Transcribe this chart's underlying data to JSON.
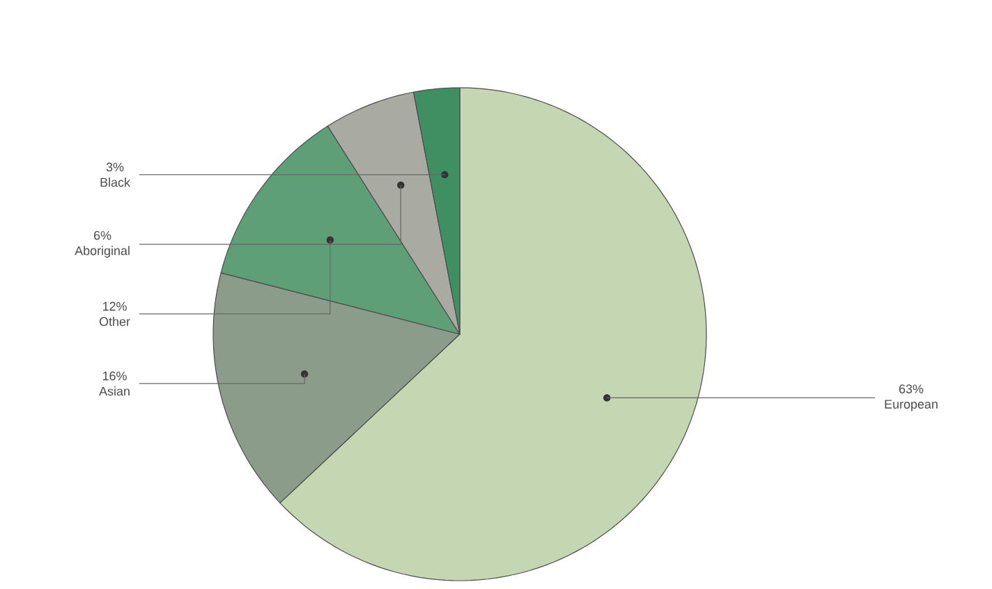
{
  "chart_data": {
    "type": "pie",
    "categories": [
      "European",
      "Asian",
      "Other",
      "Aboriginal",
      "Black"
    ],
    "values": [
      63,
      16,
      12,
      6,
      3
    ],
    "value_labels": [
      "63%",
      "16%",
      "12%",
      "6%",
      "3%"
    ],
    "colors": [
      "#c4d7b2",
      "#8c9c8a",
      "#5e9f78",
      "#a9aba2",
      "#3f8f62"
    ]
  }
}
